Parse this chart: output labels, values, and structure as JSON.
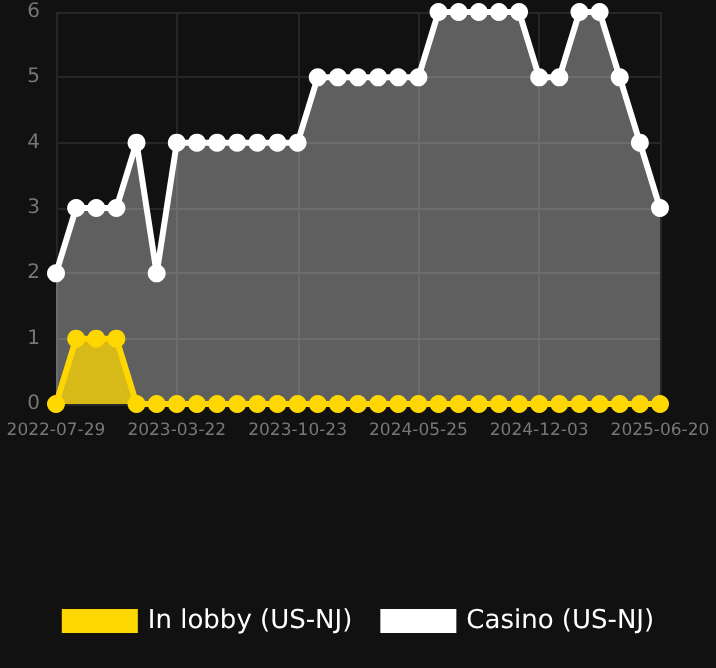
{
  "chart_data": {
    "type": "area",
    "categories": [
      "2022-07-29",
      null,
      null,
      null,
      null,
      null,
      "2023-03-22",
      null,
      null,
      null,
      null,
      null,
      "2023-10-23",
      null,
      null,
      null,
      null,
      null,
      "2024-05-25",
      null,
      null,
      null,
      null,
      null,
      "2024-12-03",
      null,
      null,
      null,
      null,
      null,
      "2025-06-20"
    ],
    "series": [
      {
        "name": "In lobby (US-NJ)",
        "color": "#ffd700",
        "values": [
          0,
          1,
          1,
          1,
          0,
          0,
          0,
          0,
          0,
          0,
          0,
          0,
          0,
          0,
          0,
          0,
          0,
          0,
          0,
          0,
          0,
          0,
          0,
          0,
          0,
          0,
          0,
          0,
          0,
          0,
          0
        ]
      },
      {
        "name": "Casino (US-NJ)",
        "color": "#ffffff",
        "values": [
          2,
          3,
          3,
          3,
          4,
          2,
          4,
          4,
          4,
          4,
          4,
          4,
          4,
          5,
          5,
          5,
          5,
          5,
          5,
          6,
          6,
          6,
          6,
          6,
          5,
          5,
          6,
          6,
          5,
          4,
          3
        ]
      }
    ],
    "ylim": [
      0,
      6
    ],
    "yticks": [
      0,
      1,
      2,
      3,
      4,
      5,
      6
    ],
    "grid": true,
    "legend": "bottom",
    "marker": "circle",
    "line_style": "solid"
  }
}
